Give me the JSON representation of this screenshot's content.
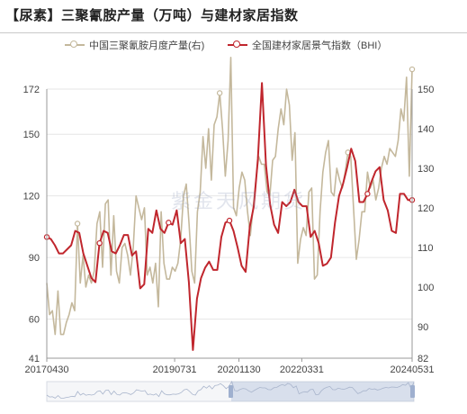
{
  "title": "【尿素】三聚氰胺产量（万吨）与建材家居指数",
  "watermark": "紫金天风期货",
  "legend": [
    {
      "label": "中国三聚氰胺月度产量(右)",
      "color": "#c4b89c"
    },
    {
      "label": "全国建材家居景气指数（BHI）",
      "color": "#c0262d"
    }
  ],
  "chart_data": {
    "type": "line",
    "x_labels_shown": [
      "20170430",
      "20190731",
      "20201130",
      "20220331",
      "20240531"
    ],
    "left_axis": {
      "ticks": [
        41,
        60,
        90,
        120,
        150,
        172
      ],
      "range": [
        41,
        172
      ]
    },
    "right_axis": {
      "ticks": [
        82,
        90,
        100,
        110,
        120,
        130,
        140,
        150
      ],
      "range": [
        82,
        150
      ]
    },
    "series": [
      {
        "name": "中国三聚氰胺月度产量(右)",
        "axis": "right",
        "color": "#c4b89c",
        "values": [
          101,
          93,
          94,
          88,
          99,
          88,
          88,
          91,
          93,
          96,
          94,
          116,
          101,
          108,
          100,
          103,
          101,
          104,
          116,
          119,
          105,
          121,
          122,
          103,
          118,
          104,
          101,
          110,
          111,
          108,
          103,
          110,
          123,
          120,
          117,
          120,
          103,
          105,
          101,
          106,
          95,
          119,
          106,
          102,
          102,
          105,
          104,
          106,
          112,
          123,
          126,
          116,
          104,
          101,
          119,
          124,
          138,
          130,
          140,
          127,
          141,
          143,
          149,
          140,
          128,
          137,
          158,
          120,
          118,
          125,
          129,
          127,
          119,
          113,
          120,
          127,
          133,
          131,
          131,
          124,
          123,
          132,
          133,
          140,
          145,
          141,
          150,
          146,
          132,
          139,
          106,
          112,
          115,
          113,
          124,
          125,
          102,
          103,
          119,
          129,
          134,
          137,
          124,
          123,
          130,
          127,
          125,
          129,
          134,
          133,
          120,
          107,
          112,
          119,
          119,
          129,
          125,
          127,
          122,
          125,
          130,
          133,
          131,
          135,
          134,
          133,
          137,
          145,
          142,
          153,
          128,
          155
        ]
      },
      {
        "name": "全国建材家居景气指数（BHI）",
        "axis": "left",
        "color": "#c0262d",
        "values": [
          100,
          99,
          96,
          92,
          92,
          94,
          96,
          103,
          102,
          92,
          86,
          80,
          78,
          97,
          103,
          102,
          93,
          92,
          96,
          101,
          101,
          91,
          93,
          75,
          77,
          104,
          102,
          113,
          104,
          102,
          107,
          106,
          113,
          97,
          99,
          78,
          45,
          70,
          80,
          85,
          88,
          84,
          84,
          100,
          107,
          108,
          103,
          95,
          86,
          83,
          105,
          115,
          138,
          175,
          135,
          116,
          106,
          102,
          117,
          115,
          117,
          123,
          117,
          115,
          115,
          100,
          103,
          97,
          86,
          87,
          90,
          107,
          120,
          126,
          134,
          143,
          137,
          117,
          117,
          121,
          127,
          132,
          134,
          118,
          113,
          103,
          102,
          121,
          121,
          118,
          118
        ]
      }
    ]
  }
}
